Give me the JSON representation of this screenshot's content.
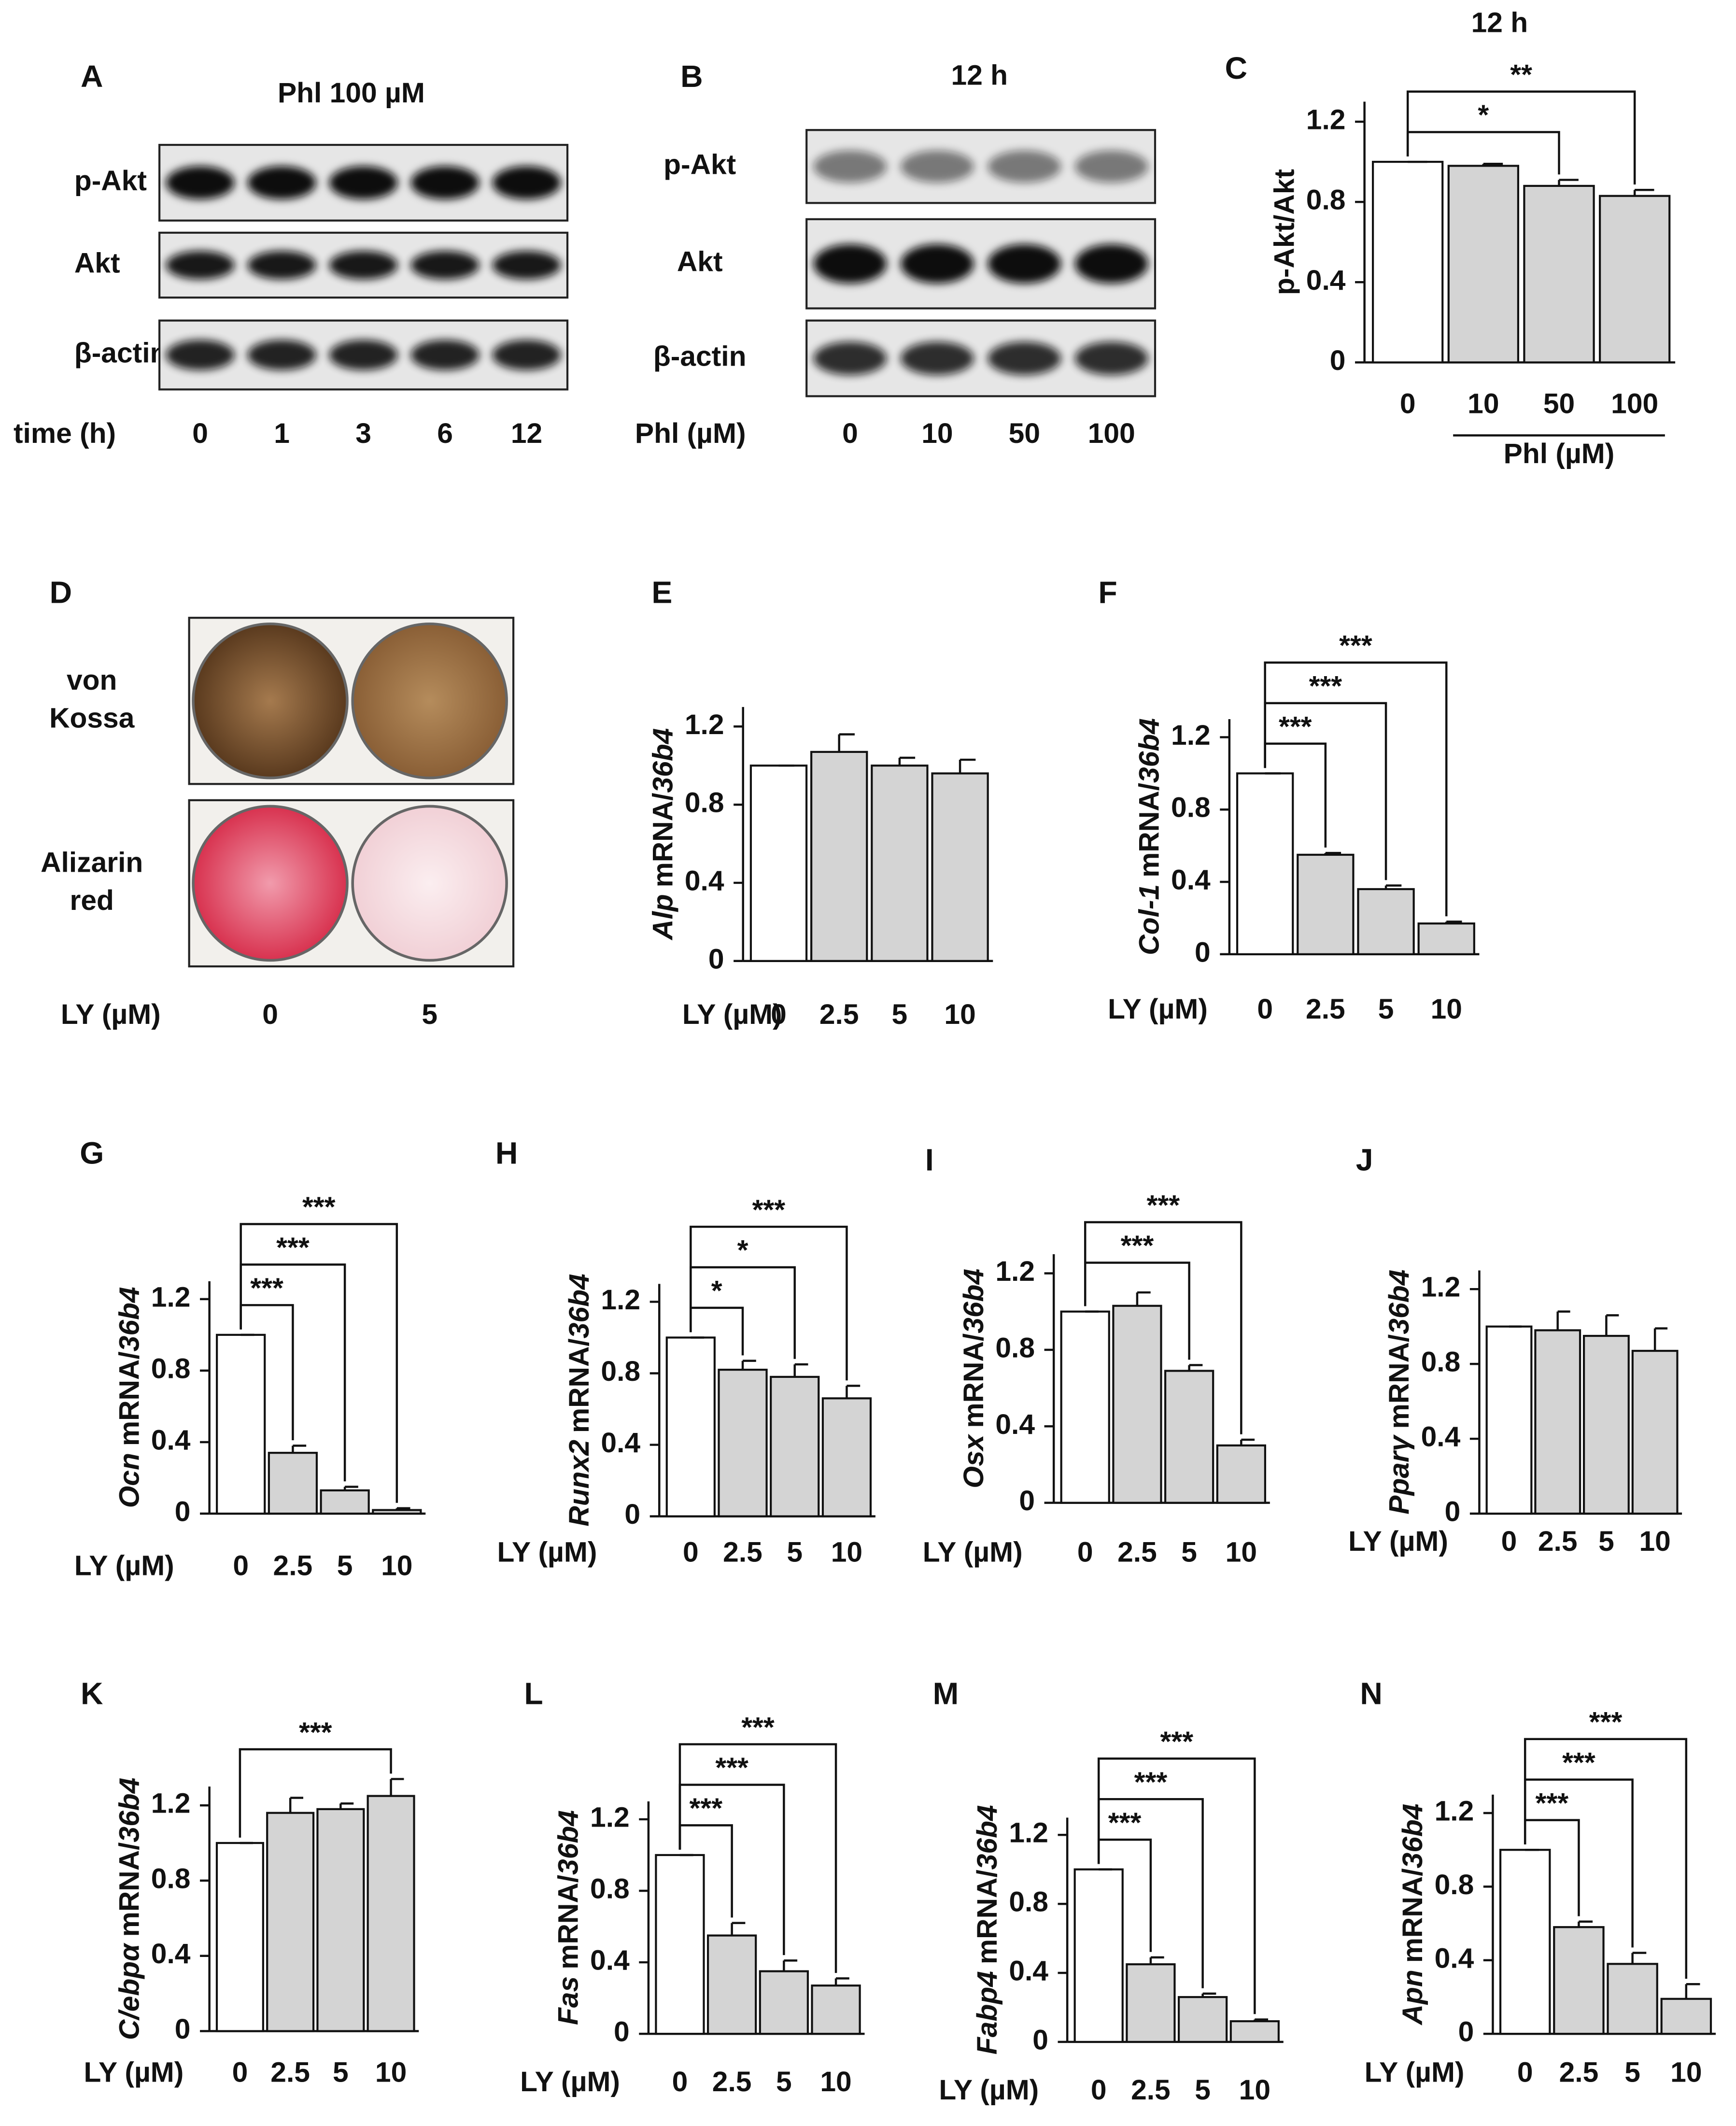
{
  "blots": [
    {
      "label": "A",
      "title": "Phl 100 µM",
      "rows": [
        "p-Akt",
        "Akt",
        "β-actin"
      ],
      "xlabel": "time (h)",
      "lanes": [
        "0",
        "1",
        "3",
        "6",
        "12"
      ]
    },
    {
      "label": "B",
      "title": "12 h",
      "rows": [
        "p-Akt",
        "Akt",
        "β-actin"
      ],
      "xlabel": "Phl (µM)",
      "lanes": [
        "0",
        "10",
        "50",
        "100"
      ]
    }
  ],
  "stain": {
    "label": "D",
    "rows": [
      "von Kossa",
      "Alizarin red"
    ],
    "xlabel": "LY (µM)",
    "wells": [
      "0",
      "5"
    ]
  },
  "chart_data": [
    {
      "type": "bar",
      "label": "C",
      "title": "12 h",
      "ylabel": [
        {
          "text": "p-Akt/Akt",
          "italic": false
        }
      ],
      "categories": [
        "0",
        "10",
        "50",
        "100"
      ],
      "group_label": "Phl (µM)",
      "group": [
        1,
        3
      ],
      "series": [
        {
          "values": [
            1.0,
            0.98,
            0.88,
            0.83
          ],
          "errors": [
            0,
            0.01,
            0.03,
            0.03
          ]
        }
      ],
      "colors": [
        "#ffffff",
        "#d4d4d4",
        "#d4d4d4",
        "#d4d4d4"
      ],
      "ylim": [
        0,
        1.3
      ],
      "yticks": [
        0,
        0.4,
        0.8,
        1.2
      ],
      "significance": [
        {
          "between": [
            0,
            2
          ],
          "text": "*"
        },
        {
          "between": [
            0,
            3
          ],
          "text": "**"
        }
      ]
    },
    {
      "type": "bar",
      "label": "E",
      "ylabel": [
        {
          "text": "Alp",
          "italic": true
        },
        {
          "text": "mRNA/",
          "italic": false
        },
        {
          "text": "36b4",
          "italic": true
        }
      ],
      "xlabel": "LY (µM)",
      "categories": [
        "0",
        "2.5",
        "5",
        "10"
      ],
      "series": [
        {
          "values": [
            1.0,
            1.07,
            1.0,
            0.96
          ],
          "errors": [
            0,
            0.09,
            0.04,
            0.07
          ]
        }
      ],
      "colors": [
        "#ffffff",
        "#d4d4d4",
        "#d4d4d4",
        "#d4d4d4"
      ],
      "ylim": [
        0,
        1.3
      ],
      "yticks": [
        0,
        0.4,
        0.8,
        1.2
      ],
      "significance": []
    },
    {
      "type": "bar",
      "label": "F",
      "ylabel": [
        {
          "text": "Col-1",
          "italic": true
        },
        {
          "text": "mRNA/",
          "italic": false
        },
        {
          "text": "36b4",
          "italic": true
        }
      ],
      "xlabel": "LY (µM)",
      "categories": [
        "0",
        "2.5",
        "5",
        "10"
      ],
      "series": [
        {
          "values": [
            1.0,
            0.55,
            0.36,
            0.17
          ],
          "errors": [
            0,
            0.01,
            0.02,
            0.01
          ]
        }
      ],
      "colors": [
        "#ffffff",
        "#d4d4d4",
        "#d4d4d4",
        "#d4d4d4"
      ],
      "ylim": [
        0,
        1.3
      ],
      "yticks": [
        0,
        0.4,
        0.8,
        1.2
      ],
      "significance": [
        {
          "between": [
            0,
            1
          ],
          "text": "***"
        },
        {
          "between": [
            0,
            2
          ],
          "text": "***"
        },
        {
          "between": [
            0,
            3
          ],
          "text": "***"
        }
      ]
    },
    {
      "type": "bar",
      "label": "G",
      "ylabel": [
        {
          "text": "Ocn",
          "italic": true
        },
        {
          "text": "mRNA/",
          "italic": false
        },
        {
          "text": "36b4",
          "italic": true
        }
      ],
      "xlabel": "LY (µM)",
      "categories": [
        "0",
        "2.5",
        "5",
        "10"
      ],
      "series": [
        {
          "values": [
            1.0,
            0.34,
            0.13,
            0.02
          ],
          "errors": [
            0,
            0.04,
            0.02,
            0.01
          ]
        }
      ],
      "colors": [
        "#ffffff",
        "#d4d4d4",
        "#d4d4d4",
        "#d4d4d4"
      ],
      "ylim": [
        0,
        1.3
      ],
      "yticks": [
        0,
        0.4,
        0.8,
        1.2
      ],
      "significance": [
        {
          "between": [
            0,
            1
          ],
          "text": "***"
        },
        {
          "between": [
            0,
            2
          ],
          "text": "***"
        },
        {
          "between": [
            0,
            3
          ],
          "text": "***"
        }
      ]
    },
    {
      "type": "bar",
      "label": "H",
      "ylabel": [
        {
          "text": "Runx2",
          "italic": true
        },
        {
          "text": "mRNA/",
          "italic": false
        },
        {
          "text": "36b4",
          "italic": true
        }
      ],
      "xlabel": "LY (µM)",
      "categories": [
        "0",
        "2.5",
        "5",
        "10"
      ],
      "series": [
        {
          "values": [
            1.0,
            0.82,
            0.78,
            0.66
          ],
          "errors": [
            0,
            0.05,
            0.07,
            0.07
          ]
        }
      ],
      "colors": [
        "#ffffff",
        "#d4d4d4",
        "#d4d4d4",
        "#d4d4d4"
      ],
      "ylim": [
        0,
        1.3
      ],
      "yticks": [
        0,
        0.4,
        0.8,
        1.2
      ],
      "significance": [
        {
          "between": [
            0,
            1
          ],
          "text": "*"
        },
        {
          "between": [
            0,
            2
          ],
          "text": "*"
        },
        {
          "between": [
            0,
            3
          ],
          "text": "***"
        }
      ]
    },
    {
      "type": "bar",
      "label": "I",
      "ylabel": [
        {
          "text": "Osx",
          "italic": true
        },
        {
          "text": "mRNA/",
          "italic": false
        },
        {
          "text": "36b4",
          "italic": true
        }
      ],
      "xlabel": "LY (µM)",
      "categories": [
        "0",
        "2.5",
        "5",
        "10"
      ],
      "series": [
        {
          "values": [
            1.0,
            1.03,
            0.69,
            0.3
          ],
          "errors": [
            0,
            0.07,
            0.03,
            0.03
          ]
        }
      ],
      "colors": [
        "#ffffff",
        "#d4d4d4",
        "#d4d4d4",
        "#d4d4d4"
      ],
      "ylim": [
        0,
        1.3
      ],
      "yticks": [
        0,
        0.4,
        0.8,
        1.2
      ],
      "significance": [
        {
          "between": [
            0,
            2
          ],
          "text": "***"
        },
        {
          "between": [
            0,
            3
          ],
          "text": "***"
        }
      ]
    },
    {
      "type": "bar",
      "label": "J",
      "ylabel": [
        {
          "text": "Pparγ",
          "italic": true
        },
        {
          "text": "mRNA/",
          "italic": false
        },
        {
          "text": "36b4",
          "italic": true
        }
      ],
      "xlabel": "LY (µM)",
      "categories": [
        "0",
        "2.5",
        "5",
        "10"
      ],
      "series": [
        {
          "values": [
            1.0,
            0.98,
            0.95,
            0.87
          ],
          "errors": [
            0,
            0.1,
            0.11,
            0.12
          ]
        }
      ],
      "colors": [
        "#ffffff",
        "#d4d4d4",
        "#d4d4d4",
        "#d4d4d4"
      ],
      "ylim": [
        0,
        1.3
      ],
      "yticks": [
        0,
        0.4,
        0.8,
        1.2
      ],
      "significance": []
    },
    {
      "type": "bar",
      "label": "K",
      "ylabel": [
        {
          "text": "C/ebpα",
          "italic": true
        },
        {
          "text": "mRNA/",
          "italic": false
        },
        {
          "text": "36b4",
          "italic": true
        }
      ],
      "xlabel": "LY (µM)",
      "categories": [
        "0",
        "2.5",
        "5",
        "10"
      ],
      "series": [
        {
          "values": [
            1.0,
            1.16,
            1.18,
            1.25
          ],
          "errors": [
            0,
            0.08,
            0.03,
            0.09
          ]
        }
      ],
      "colors": [
        "#ffffff",
        "#d4d4d4",
        "#d4d4d4",
        "#d4d4d4"
      ],
      "ylim": [
        0,
        1.3
      ],
      "yticks": [
        0,
        0.4,
        0.8,
        1.2
      ],
      "significance": [
        {
          "between": [
            0,
            3
          ],
          "text": "***"
        }
      ]
    },
    {
      "type": "bar",
      "label": "L",
      "ylabel": [
        {
          "text": "Fas",
          "italic": true
        },
        {
          "text": "mRNA/",
          "italic": false
        },
        {
          "text": "36b4",
          "italic": true
        }
      ],
      "xlabel": "LY (µM)",
      "categories": [
        "0",
        "2.5",
        "5",
        "10"
      ],
      "series": [
        {
          "values": [
            1.0,
            0.55,
            0.35,
            0.27
          ],
          "errors": [
            0,
            0.07,
            0.06,
            0.04
          ]
        }
      ],
      "colors": [
        "#ffffff",
        "#d4d4d4",
        "#d4d4d4",
        "#d4d4d4"
      ],
      "ylim": [
        0,
        1.3
      ],
      "yticks": [
        0,
        0.4,
        0.8,
        1.2
      ],
      "significance": [
        {
          "between": [
            0,
            1
          ],
          "text": "***"
        },
        {
          "between": [
            0,
            2
          ],
          "text": "***"
        },
        {
          "between": [
            0,
            3
          ],
          "text": "***"
        }
      ]
    },
    {
      "type": "bar",
      "label": "M",
      "ylabel": [
        {
          "text": "Fabp4",
          "italic": true
        },
        {
          "text": "mRNA/",
          "italic": false
        },
        {
          "text": "36b4",
          "italic": true
        }
      ],
      "xlabel": "LY (µM)",
      "categories": [
        "0",
        "2.5",
        "5",
        "10"
      ],
      "series": [
        {
          "values": [
            1.0,
            0.45,
            0.26,
            0.12
          ],
          "errors": [
            0,
            0.04,
            0.02,
            0.01
          ]
        }
      ],
      "colors": [
        "#ffffff",
        "#d4d4d4",
        "#d4d4d4",
        "#d4d4d4"
      ],
      "ylim": [
        0,
        1.3
      ],
      "yticks": [
        0,
        0.4,
        0.8,
        1.2
      ],
      "significance": [
        {
          "between": [
            0,
            1
          ],
          "text": "***"
        },
        {
          "between": [
            0,
            2
          ],
          "text": "***"
        },
        {
          "between": [
            0,
            3
          ],
          "text": "***"
        }
      ]
    },
    {
      "type": "bar",
      "label": "N",
      "ylabel": [
        {
          "text": "Apn",
          "italic": true
        },
        {
          "text": "mRNA/",
          "italic": false
        },
        {
          "text": "36b4",
          "italic": true
        }
      ],
      "xlabel": "LY (µM)",
      "categories": [
        "0",
        "2.5",
        "5",
        "10"
      ],
      "series": [
        {
          "values": [
            1.0,
            0.58,
            0.38,
            0.19
          ],
          "errors": [
            0,
            0.03,
            0.06,
            0.08
          ]
        }
      ],
      "colors": [
        "#ffffff",
        "#d4d4d4",
        "#d4d4d4",
        "#d4d4d4"
      ],
      "ylim": [
        0,
        1.3
      ],
      "yticks": [
        0,
        0.4,
        0.8,
        1.2
      ],
      "significance": [
        {
          "between": [
            0,
            1
          ],
          "text": "***"
        },
        {
          "between": [
            0,
            2
          ],
          "text": "***"
        },
        {
          "between": [
            0,
            3
          ],
          "text": "***"
        }
      ]
    }
  ]
}
